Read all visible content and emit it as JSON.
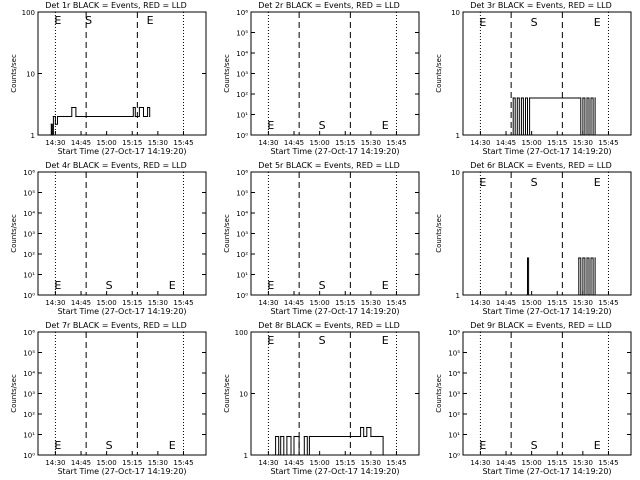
{
  "chart_data": [
    {
      "type": "line",
      "title": "Det 1r BLACK = Events, RED = LLD",
      "ylabel": "Counts/sec",
      "xlabel": "Start Time (27-Oct-17 14:19:20)",
      "xticks": [
        "14:30",
        "14:45",
        "15:00",
        "15:15",
        "15:30",
        "15:45"
      ],
      "yscale": "log",
      "ylim": [
        1,
        100
      ],
      "yticks": [
        "1",
        "10",
        "100"
      ],
      "markers": [
        {
          "label": "E",
          "x": "14:30"
        },
        {
          "label": "S",
          "x": "14:48"
        },
        {
          "label": "E",
          "x": "15:24"
        }
      ],
      "series": [
        {
          "values": [
            [
              14.45,
              1
            ],
            [
              14.46,
              1.5
            ],
            [
              14.47,
              1
            ],
            [
              14.48,
              2
            ],
            [
              14.5,
              1.5
            ],
            [
              14.52,
              2
            ],
            [
              14.55,
              2
            ],
            [
              14.58,
              2
            ],
            [
              14.62,
              2
            ],
            [
              14.66,
              2.8
            ],
            [
              14.7,
              2
            ],
            [
              14.73,
              2
            ],
            [
              15.26,
              2.8
            ],
            [
              15.28,
              2
            ],
            [
              15.32,
              2.8
            ],
            [
              15.36,
              2
            ],
            [
              15.4,
              2.8
            ],
            [
              15.42,
              2
            ]
          ]
        }
      ]
    },
    {
      "type": "line",
      "title": "Det 2r BLACK = Events, RED = LLD",
      "ylabel": "Counts/sec",
      "xlabel": "Start Time (27-Oct-17 14:19:20)",
      "xticks": [
        "14:30",
        "14:45",
        "15:00",
        "15:15",
        "15:30",
        "15:45"
      ],
      "yscale": "log",
      "ylim": [
        1,
        1000000
      ],
      "yticks": [
        "10⁰",
        "10¹",
        "10²",
        "10³",
        "10⁴",
        "10⁵",
        "10⁶"
      ],
      "markers": [
        {
          "label": "E",
          "x": "14:30"
        },
        {
          "label": "S",
          "x": "15:00"
        },
        {
          "label": "E",
          "x": "15:37"
        }
      ],
      "series": []
    },
    {
      "type": "line",
      "title": "Det 3r BLACK = Events, RED = LLD",
      "ylabel": "Counts/sec",
      "xlabel": "Start Time (27-Oct-17 14:19:20)",
      "xticks": [
        "14:30",
        "14:45",
        "15:00",
        "15:15",
        "15:30",
        "15:45"
      ],
      "yscale": "log",
      "ylim": [
        1,
        10
      ],
      "yticks": [
        "1",
        "10"
      ],
      "markers": [
        {
          "label": "E",
          "x": "14:30"
        },
        {
          "label": "S",
          "x": "15:00"
        },
        {
          "label": "E",
          "x": "15:37"
        }
      ],
      "series": [
        {
          "values": [
            [
              14.8,
              1
            ],
            [
              14.82,
              2
            ],
            [
              14.84,
              1
            ],
            [
              14.86,
              2
            ],
            [
              14.88,
              1
            ],
            [
              14.9,
              2
            ],
            [
              14.92,
              1
            ],
            [
              14.94,
              2
            ],
            [
              14.96,
              1
            ],
            [
              14.98,
              2
            ],
            [
              15.46,
              2
            ],
            [
              15.48,
              1
            ],
            [
              15.5,
              2
            ],
            [
              15.52,
              1
            ],
            [
              15.54,
              2
            ],
            [
              15.56,
              1
            ],
            [
              15.58,
              2
            ],
            [
              15.6,
              1
            ],
            [
              15.62,
              2
            ]
          ]
        }
      ]
    },
    {
      "type": "line",
      "title": "Det 4r BLACK = Events, RED = LLD",
      "ylabel": "Counts/sec",
      "xlabel": "Start Time (27-Oct-17 14:19:20)",
      "xticks": [
        "14:30",
        "14:45",
        "15:00",
        "15:15",
        "15:30",
        "15:45"
      ],
      "yscale": "log",
      "ylim": [
        1,
        1000000
      ],
      "yticks": [
        "10⁰",
        "10¹",
        "10²",
        "10³",
        "10⁴",
        "10⁵",
        "10⁶"
      ],
      "markers": [
        {
          "label": "E",
          "x": "14:30"
        },
        {
          "label": "S",
          "x": "15:00"
        },
        {
          "label": "E",
          "x": "15:37"
        }
      ],
      "series": []
    },
    {
      "type": "line",
      "title": "Det 5r BLACK = Events, RED = LLD",
      "ylabel": "Counts/sec",
      "xlabel": "Start Time (27-Oct-17 14:19:20)",
      "xticks": [
        "14:30",
        "14:45",
        "15:00",
        "15:15",
        "15:30",
        "15:45"
      ],
      "yscale": "log",
      "ylim": [
        1,
        1000000
      ],
      "yticks": [
        "10⁰",
        "10¹",
        "10²",
        "10³",
        "10⁴",
        "10⁵",
        "10⁶"
      ],
      "markers": [
        {
          "label": "E",
          "x": "14:30"
        },
        {
          "label": "S",
          "x": "15:00"
        },
        {
          "label": "E",
          "x": "15:37"
        }
      ],
      "series": []
    },
    {
      "type": "line",
      "title": "Det 6r BLACK = Events, RED = LLD",
      "ylabel": "Counts/sec",
      "xlabel": "Start Time (27-Oct-17 14:19:20)",
      "xticks": [
        "14:30",
        "14:45",
        "15:00",
        "15:15",
        "15:30",
        "15:45"
      ],
      "yscale": "log",
      "ylim": [
        1,
        10
      ],
      "yticks": [
        "1",
        "10"
      ],
      "markers": [
        {
          "label": "E",
          "x": "14:30"
        },
        {
          "label": "S",
          "x": "15:00"
        },
        {
          "label": "E",
          "x": "15:37"
        }
      ],
      "series": [
        {
          "values": [
            [
              14.95,
              1
            ],
            [
              14.96,
              2
            ],
            [
              14.97,
              1
            ],
            [
              15.46,
              2
            ],
            [
              15.48,
              1
            ],
            [
              15.5,
              2
            ],
            [
              15.52,
              1
            ],
            [
              15.54,
              2
            ],
            [
              15.56,
              1
            ],
            [
              15.58,
              2
            ],
            [
              15.6,
              1
            ],
            [
              15.62,
              2
            ]
          ]
        }
      ]
    },
    {
      "type": "line",
      "title": "Det 7r BLACK = Events, RED = LLD",
      "ylabel": "Counts/sec",
      "xlabel": "Start Time (27-Oct-17 14:19:20)",
      "xticks": [
        "14:30",
        "14:45",
        "15:00",
        "15:15",
        "15:30",
        "15:45"
      ],
      "yscale": "log",
      "ylim": [
        1,
        1000000
      ],
      "yticks": [
        "10⁰",
        "10¹",
        "10²",
        "10³",
        "10⁴",
        "10⁵",
        "10⁶"
      ],
      "markers": [
        {
          "label": "E",
          "x": "14:30"
        },
        {
          "label": "S",
          "x": "15:00"
        },
        {
          "label": "E",
          "x": "15:37"
        }
      ],
      "series": []
    },
    {
      "type": "line",
      "title": "Det 8r BLACK = Events, RED = LLD",
      "ylabel": "Counts/sec",
      "xlabel": "Start Time (27-Oct-17 14:19:20)",
      "xticks": [
        "14:30",
        "14:45",
        "15:00",
        "15:15",
        "15:30",
        "15:45"
      ],
      "yscale": "log",
      "ylim": [
        1,
        100
      ],
      "yticks": [
        "1",
        "10",
        "100"
      ],
      "markers": [
        {
          "label": "E",
          "x": "14:30"
        },
        {
          "label": "S",
          "x": "15:00"
        },
        {
          "label": "E",
          "x": "15:37"
        }
      ],
      "series": [
        {
          "values": [
            [
              14.55,
              1
            ],
            [
              14.57,
              2
            ],
            [
              14.6,
              1
            ],
            [
              14.62,
              2
            ],
            [
              14.65,
              1
            ],
            [
              14.68,
              2
            ],
            [
              14.72,
              1
            ],
            [
              14.75,
              2
            ],
            [
              14.8,
              1
            ],
            [
              14.85,
              2
            ],
            [
              14.88,
              1
            ],
            [
              14.9,
              2
            ],
            [
              15.4,
              2.8
            ],
            [
              15.43,
              2
            ],
            [
              15.46,
              2.8
            ],
            [
              15.5,
              2
            ],
            [
              15.55,
              2
            ],
            [
              15.6,
              2
            ],
            [
              15.62,
              1
            ]
          ]
        }
      ]
    },
    {
      "type": "line",
      "title": "Det 9r BLACK = Events, RED = LLD",
      "ylabel": "Counts/sec",
      "xlabel": "Start Time (27-Oct-17 14:19:20)",
      "xticks": [
        "14:30",
        "14:45",
        "15:00",
        "15:15",
        "15:30",
        "15:45"
      ],
      "yscale": "log",
      "ylim": [
        1,
        1000000
      ],
      "yticks": [
        "10⁰",
        "10¹",
        "10²",
        "10³",
        "10⁴",
        "10⁵",
        "10⁶"
      ],
      "markers": [
        {
          "label": "E",
          "x": "14:30"
        },
        {
          "label": "S",
          "x": "15:00"
        },
        {
          "label": "E",
          "x": "15:37"
        }
      ],
      "series": []
    }
  ],
  "colors": {
    "background": "#ffffff",
    "axes": "#000000",
    "events": "#000000",
    "lld": "#ff0000"
  }
}
